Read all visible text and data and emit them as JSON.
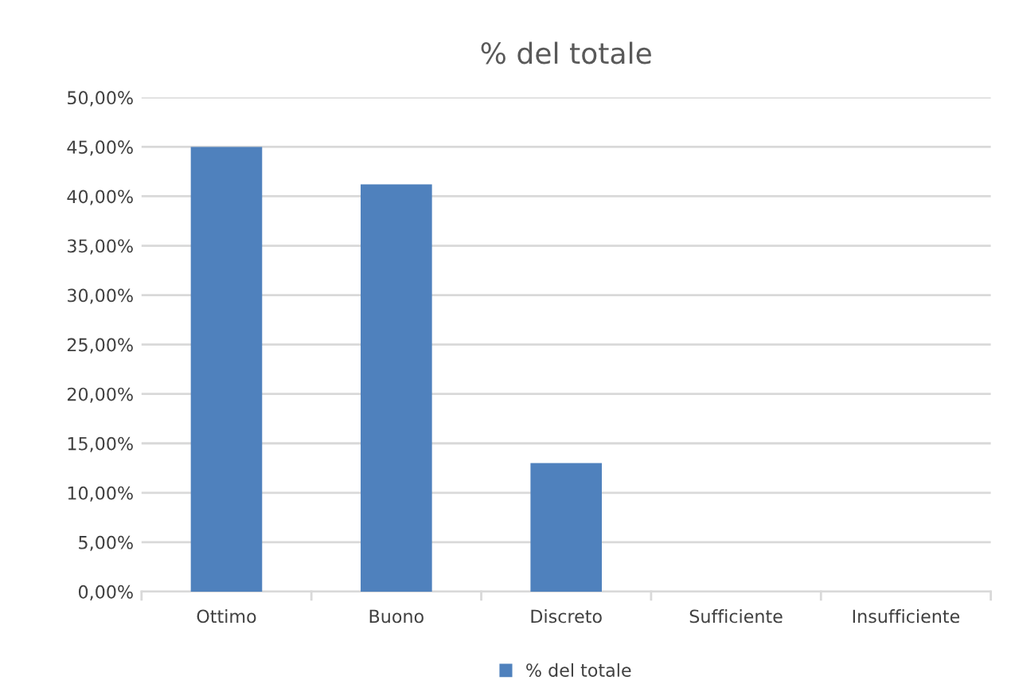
{
  "chart_data": {
    "type": "bar",
    "title": "% del totale",
    "categories": [
      "Ottimo",
      "Buono",
      "Discreto",
      "Sufficiente",
      "Insufficiente"
    ],
    "series": [
      {
        "name": "% del totale",
        "color": "#4f81bd",
        "values": [
          45.0,
          41.2,
          13.0,
          0,
          0
        ]
      }
    ],
    "ylim": [
      0,
      50
    ],
    "yticks": [
      {
        "value": 0,
        "label": "0,00%"
      },
      {
        "value": 5,
        "label": "5,00%"
      },
      {
        "value": 10,
        "label": "10,00%"
      },
      {
        "value": 15,
        "label": "15,00%"
      },
      {
        "value": 20,
        "label": "20,00%"
      },
      {
        "value": 25,
        "label": "25,00%"
      },
      {
        "value": 30,
        "label": "30,00%"
      },
      {
        "value": 35,
        "label": "35,00%"
      },
      {
        "value": 40,
        "label": "40,00%"
      },
      {
        "value": 45,
        "label": "45,00%"
      },
      {
        "value": 50,
        "label": "50,00%"
      }
    ],
    "grid": "y",
    "legend": "bottom"
  }
}
